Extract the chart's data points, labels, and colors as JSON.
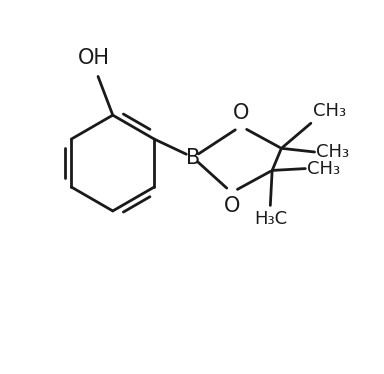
{
  "background_color": "#ffffff",
  "line_color": "#1a1a1a",
  "line_width": 2.0,
  "font_size_atom": 15,
  "font_size_ch3": 13,
  "figsize": [
    3.84,
    3.74
  ],
  "dpi": 100,
  "oh_label": "OH",
  "b_label": "B",
  "o_top_label": "O",
  "o_bot_label": "O",
  "ch3_1_label": "CH₃",
  "ch3_2_label": "CH₃",
  "ch3_3_label": "CH₃",
  "h3c_label": "H₃C"
}
